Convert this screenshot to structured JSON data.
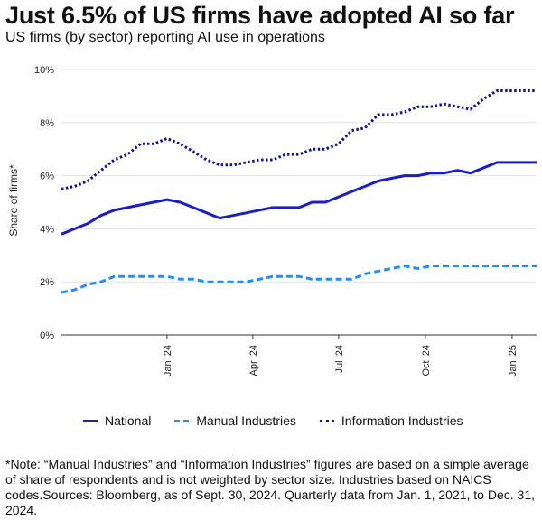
{
  "header": {
    "title": "Just 6.5% of US firms have adopted AI so far",
    "subtitle": "US firms (by sector) reporting AI use in operations"
  },
  "note": "*Note: “Manual Industries” and “Information Industries” figures are based on a simple average of share of respondents and is not weighted by sector size. Industries based on NAICS codes.Sources: Bloomberg, as of Sept. 30, 2024. Quarterly data from Jan. 1, 2021, to Dec. 31, 2024.",
  "chart_data": {
    "type": "line",
    "title": "Just 6.5% of US firms have adopted AI so far",
    "subtitle": "US firms (by sector) reporting AI use in operations",
    "ylabel": "Share of firms*",
    "xlabel": "",
    "ylim": [
      0,
      10
    ],
    "yticks": [
      0,
      2,
      4,
      6,
      8,
      10
    ],
    "ytick_labels": [
      "0%",
      "2%",
      "4%",
      "6%",
      "8%",
      "10%"
    ],
    "x": [
      "2023-09-11",
      "2023-09-25",
      "2023-10-09",
      "2023-10-23",
      "2023-11-06",
      "2023-11-20",
      "2023-12-04",
      "2023-12-18",
      "2024-01-01",
      "2024-01-15",
      "2024-01-29",
      "2024-02-12",
      "2024-02-26",
      "2024-03-11",
      "2024-03-25",
      "2024-04-08",
      "2024-04-22",
      "2024-05-06",
      "2024-05-20",
      "2024-06-03",
      "2024-06-17",
      "2024-07-01",
      "2024-07-15",
      "2024-07-29",
      "2024-08-12",
      "2024-08-26",
      "2024-09-09",
      "2024-09-23",
      "2024-10-07",
      "2024-10-21",
      "2024-11-04",
      "2024-11-18",
      "2024-12-02",
      "2024-12-16",
      "2024-12-30",
      "2025-01-13",
      "2025-01-27"
    ],
    "xticks": [
      "2024-01-01",
      "2024-04-01",
      "2024-07-01",
      "2024-10-01",
      "2025-01-01"
    ],
    "xtick_labels": [
      "Jan '24",
      "Apr '24",
      "Jul '24",
      "Oct '24",
      "Jan '25"
    ],
    "series": [
      {
        "name": "National",
        "color": "#1a1fc4",
        "style": "solid",
        "values": [
          3.8,
          4.0,
          4.2,
          4.5,
          4.7,
          4.8,
          4.9,
          5.0,
          5.1,
          5.0,
          4.8,
          4.6,
          4.4,
          4.5,
          4.6,
          4.7,
          4.8,
          4.8,
          4.8,
          5.0,
          5.0,
          5.2,
          5.4,
          5.6,
          5.8,
          5.9,
          6.0,
          6.0,
          6.1,
          6.1,
          6.2,
          6.1,
          6.3,
          6.5,
          6.5,
          6.5,
          6.5
        ]
      },
      {
        "name": "Manual Industries",
        "color": "#1f8fff",
        "style": "dashed",
        "values": [
          1.6,
          1.7,
          1.9,
          2.0,
          2.2,
          2.2,
          2.2,
          2.2,
          2.2,
          2.1,
          2.1,
          2.0,
          2.0,
          2.0,
          2.0,
          2.1,
          2.2,
          2.2,
          2.2,
          2.1,
          2.1,
          2.1,
          2.1,
          2.3,
          2.4,
          2.5,
          2.6,
          2.5,
          2.6,
          2.6,
          2.6,
          2.6,
          2.6,
          2.6,
          2.6,
          2.6,
          2.6
        ]
      },
      {
        "name": "Information Industries",
        "color": "#12128c",
        "style": "dotted",
        "values": [
          5.5,
          5.6,
          5.8,
          6.2,
          6.6,
          6.8,
          7.2,
          7.2,
          7.4,
          7.2,
          6.9,
          6.6,
          6.4,
          6.4,
          6.5,
          6.6,
          6.6,
          6.8,
          6.8,
          7.0,
          7.0,
          7.2,
          7.7,
          7.8,
          8.3,
          8.3,
          8.4,
          8.6,
          8.6,
          8.7,
          8.6,
          8.5,
          8.9,
          9.2,
          9.2,
          9.2,
          9.2
        ]
      }
    ],
    "grid": "horizontal",
    "legend": "bottom"
  }
}
